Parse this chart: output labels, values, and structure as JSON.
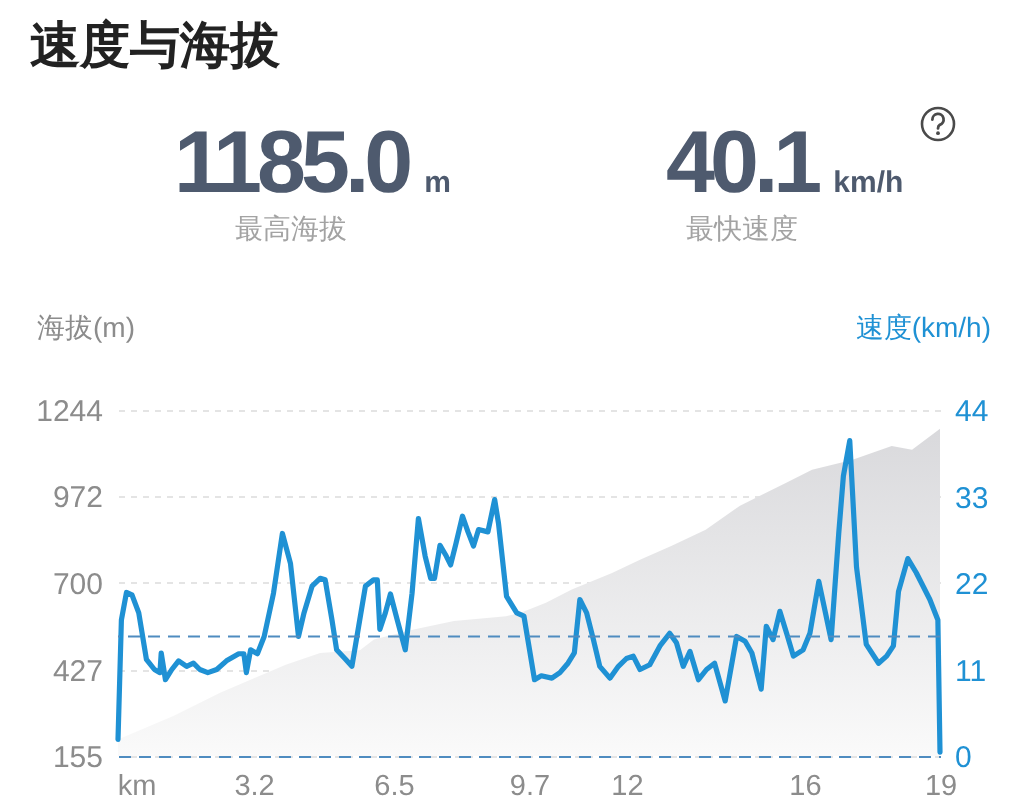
{
  "chart_data": {
    "type": "line",
    "title": "速度与海拔",
    "annotations": [
      "1185.0",
      "m",
      "最高海拔",
      "40.1",
      "km/h",
      "最快速度"
    ],
    "xlabel": "km",
    "ylabel": "海拔(m)",
    "y2label": "速度(km/h)",
    "xlim": [
      0,
      19.4
    ],
    "xticks": [
      3.2,
      6.5,
      9.7,
      12,
      {
        "value": 16.2,
        "label": "16"
      },
      {
        "value": 19.4,
        "label": "19"
      }
    ],
    "ylim": [
      155,
      1244
    ],
    "yticks": [
      155,
      427,
      700,
      972,
      1244
    ],
    "y2lim": [
      0,
      44
    ],
    "y2ticks": [
      0,
      11,
      22,
      33,
      44
    ],
    "grid": "y",
    "ref_lines": [
      {
        "axis": "y2",
        "value": 15.2,
        "color": "#4f8cc0",
        "line_style": "dashed"
      }
    ],
    "series": [
      {
        "type": "area",
        "color": "#d9d9dc",
        "x": [
          0,
          1.32,
          2.41,
          3.21,
          3.96,
          4.77,
          5.71,
          6.04,
          6.98,
          7.93,
          9.16,
          9.49,
          10.1,
          10.71,
          11.66,
          12.32,
          13.07,
          13.87,
          14.68,
          15.76,
          16.38,
          17.32,
          18.26,
          18.74,
          19.4
        ],
        "values": [
          207,
          282,
          354,
          400,
          442,
          479,
          488,
          522,
          553,
          580,
          595,
          605,
          637,
          679,
          731,
          773,
          817,
          867,
          943,
          1014,
          1056,
          1087,
          1131,
          1119,
          1185
        ]
      },
      {
        "axis": "y2",
        "color": "#1f91d4",
        "x": [
          0,
          0.08,
          0.2,
          0.33,
          0.49,
          0.67,
          0.86,
          0.99,
          1.02,
          1.12,
          1.27,
          1.43,
          1.62,
          1.78,
          1.93,
          2.12,
          2.33,
          2.56,
          2.85,
          2.97,
          3.03,
          3.13,
          3.29,
          3.45,
          3.67,
          3.88,
          4.07,
          4.26,
          4.39,
          4.58,
          4.77,
          4.89,
          5.05,
          5.16,
          5.37,
          5.52,
          5.68,
          5.84,
          6.03,
          6.12,
          6.18,
          6.31,
          6.43,
          6.59,
          6.78,
          6.94,
          7.09,
          7.25,
          7.38,
          7.47,
          7.6,
          7.73,
          7.85,
          7.98,
          8.13,
          8.26,
          8.39,
          8.51,
          8.73,
          8.89,
          8.98,
          9.17,
          9.41,
          9.58,
          9.83,
          9.99,
          10.24,
          10.43,
          10.62,
          10.77,
          10.9,
          11.06,
          11.22,
          11.37,
          11.61,
          11.81,
          12,
          12.16,
          12.32,
          12.55,
          12.79,
          13.02,
          13.18,
          13.34,
          13.5,
          13.7,
          13.89,
          14.08,
          14.33,
          14.6,
          14.8,
          14.96,
          15.18,
          15.3,
          15.46,
          15.62,
          15.78,
          15.94,
          16.17,
          16.33,
          16.54,
          16.83,
          17.01,
          17.12,
          17.27,
          17.43,
          17.66,
          17.95,
          18.14,
          18.3,
          18.42,
          18.64,
          18.84,
          19.16,
          19.35,
          19.4
        ],
        "values": [
          2.1,
          17.3,
          20.8,
          20.5,
          18.2,
          12.3,
          11,
          10.6,
          13.1,
          9.7,
          11,
          12.1,
          11.4,
          11.8,
          11,
          10.6,
          11,
          12.1,
          13,
          13,
          10.6,
          13.5,
          13,
          15.2,
          20.7,
          28.3,
          24.5,
          15.2,
          18.2,
          21.6,
          22.6,
          22.4,
          17.3,
          13.5,
          12.3,
          11.4,
          16.5,
          21.6,
          22.4,
          22.4,
          16.1,
          18.2,
          20.6,
          17.3,
          13.5,
          20.7,
          30.2,
          25.4,
          22.6,
          22.6,
          26.8,
          25.6,
          24.3,
          27.1,
          30.5,
          28.5,
          26.7,
          28.8,
          28.5,
          32.6,
          29.6,
          20.3,
          18.2,
          17.8,
          9.7,
          10.2,
          9.9,
          10.6,
          11.8,
          13.1,
          19.9,
          18.2,
          14.8,
          11.4,
          9.9,
          11.4,
          12.4,
          12.7,
          11,
          11.6,
          14,
          15.6,
          14.4,
          11.4,
          13.3,
          9.7,
          11,
          11.8,
          7,
          15.2,
          14.6,
          13.1,
          8.5,
          16.5,
          14.8,
          18.4,
          15.6,
          12.7,
          13.5,
          15.6,
          22.2,
          14.8,
          28.3,
          35.6,
          40.1,
          24,
          14.2,
          11.8,
          12.7,
          14,
          20.9,
          25.1,
          23.3,
          19.9,
          17.3,
          0.5
        ]
      }
    ]
  }
}
